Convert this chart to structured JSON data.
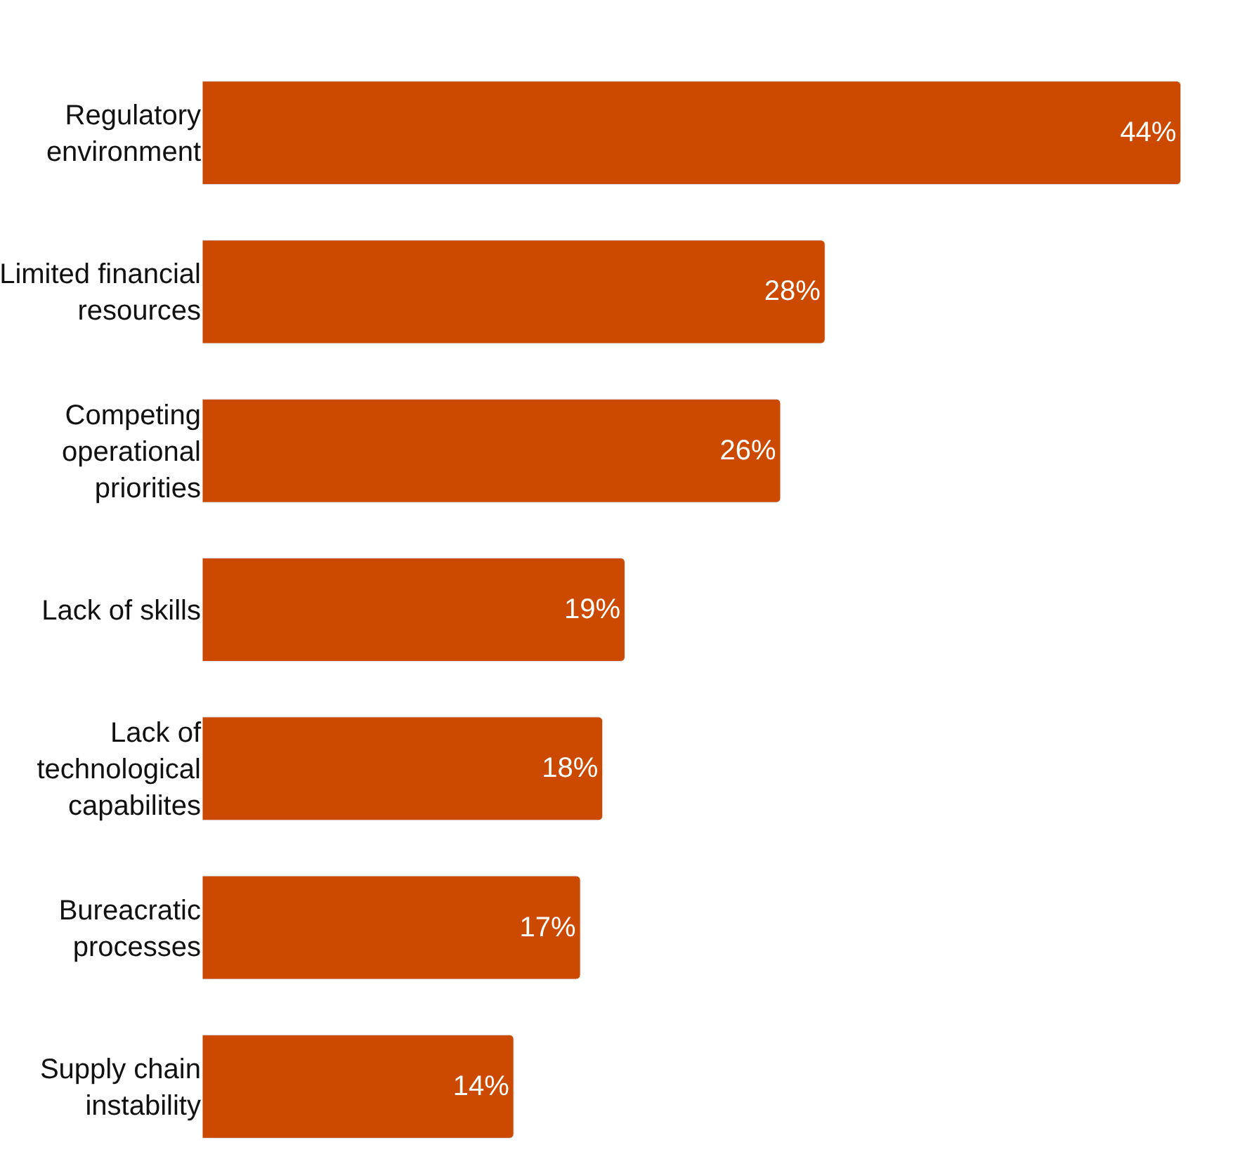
{
  "chart_data": {
    "type": "bar",
    "orientation": "horizontal",
    "categories": [
      "Regulatory environment",
      "Limited financial resources",
      "Competing operational priorities",
      "Lack of skills",
      "Lack of technological capabilites",
      "Bureacratic processes",
      "Supply chain instability"
    ],
    "values": [
      44,
      28,
      26,
      19,
      18,
      17,
      14
    ],
    "value_labels": [
      "44%",
      "28%",
      "26%",
      "19%",
      "18%",
      "17%",
      "14%"
    ],
    "color": "#cc4a00"
  }
}
